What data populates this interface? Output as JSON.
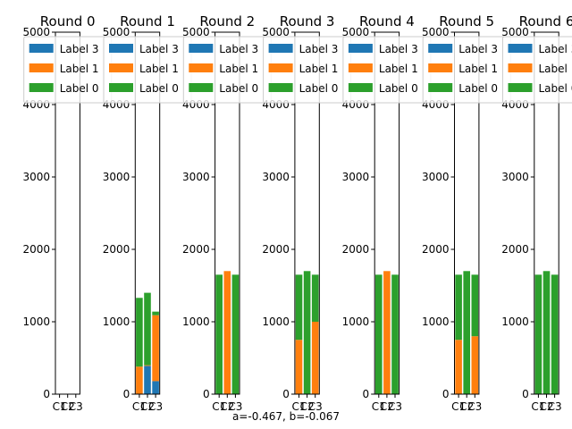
{
  "figure": {
    "caption": "a=-0.467, b=-0.067",
    "colors": {
      "Label 3": "#1f77b4",
      "Label 1": "#ff7f0e",
      "Label 0": "#2ca02c"
    }
  },
  "chart_data": [
    {
      "type": "bar",
      "stacked": true,
      "title": "Round 0",
      "categories": [
        "C1",
        "C2",
        "C3"
      ],
      "ylim": [
        0,
        5000
      ],
      "yticks": [
        0,
        1000,
        2000,
        3000,
        4000,
        5000
      ],
      "legend": [
        "Label 3",
        "Label 1",
        "Label 0"
      ],
      "legend_position": "top",
      "series": [
        {
          "name": "Label 3",
          "values": [
            0,
            0,
            0
          ]
        },
        {
          "name": "Label 1",
          "values": [
            0,
            0,
            0
          ]
        },
        {
          "name": "Label 0",
          "values": [
            0,
            0,
            0
          ]
        }
      ]
    },
    {
      "type": "bar",
      "stacked": true,
      "title": "Round 1",
      "categories": [
        "C1",
        "C2",
        "C3"
      ],
      "ylim": [
        0,
        5000
      ],
      "yticks": [
        0,
        1000,
        2000,
        3000,
        4000,
        5000
      ],
      "legend": [
        "Label 3",
        "Label 1",
        "Label 0"
      ],
      "legend_position": "top",
      "series": [
        {
          "name": "Label 3",
          "values": [
            0,
            390,
            180
          ]
        },
        {
          "name": "Label 1",
          "values": [
            380,
            10,
            910
          ]
        },
        {
          "name": "Label 0",
          "values": [
            950,
            1000,
            50
          ]
        }
      ]
    },
    {
      "type": "bar",
      "stacked": true,
      "title": "Round 2",
      "categories": [
        "C1",
        "C2",
        "C3"
      ],
      "ylim": [
        0,
        5000
      ],
      "yticks": [
        0,
        1000,
        2000,
        3000,
        4000,
        5000
      ],
      "legend": [
        "Label 3",
        "Label 1",
        "Label 0"
      ],
      "legend_position": "top",
      "series": [
        {
          "name": "Label 3",
          "values": [
            0,
            0,
            0
          ]
        },
        {
          "name": "Label 1",
          "values": [
            0,
            1700,
            0
          ]
        },
        {
          "name": "Label 0",
          "values": [
            1650,
            0,
            1650
          ]
        }
      ]
    },
    {
      "type": "bar",
      "stacked": true,
      "title": "Round 3",
      "categories": [
        "C1",
        "C2",
        "C3"
      ],
      "ylim": [
        0,
        5000
      ],
      "yticks": [
        0,
        1000,
        2000,
        3000,
        4000,
        5000
      ],
      "legend": [
        "Label 3",
        "Label 1",
        "Label 0"
      ],
      "legend_position": "top",
      "series": [
        {
          "name": "Label 3",
          "values": [
            0,
            0,
            0
          ]
        },
        {
          "name": "Label 1",
          "values": [
            750,
            0,
            1000
          ]
        },
        {
          "name": "Label 0",
          "values": [
            900,
            1700,
            650
          ]
        }
      ]
    },
    {
      "type": "bar",
      "stacked": true,
      "title": "Round 4",
      "categories": [
        "C1",
        "C2",
        "C3"
      ],
      "ylim": [
        0,
        5000
      ],
      "yticks": [
        0,
        1000,
        2000,
        3000,
        4000,
        5000
      ],
      "legend": [
        "Label 3",
        "Label 1",
        "Label 0"
      ],
      "legend_position": "top",
      "series": [
        {
          "name": "Label 3",
          "values": [
            0,
            0,
            0
          ]
        },
        {
          "name": "Label 1",
          "values": [
            0,
            1700,
            0
          ]
        },
        {
          "name": "Label 0",
          "values": [
            1650,
            0,
            1650
          ]
        }
      ]
    },
    {
      "type": "bar",
      "stacked": true,
      "title": "Round 5",
      "categories": [
        "C1",
        "C2",
        "C3"
      ],
      "ylim": [
        0,
        5000
      ],
      "yticks": [
        0,
        1000,
        2000,
        3000,
        4000,
        5000
      ],
      "legend": [
        "Label 3",
        "Label 1",
        "Label 0"
      ],
      "legend_position": "top",
      "series": [
        {
          "name": "Label 3",
          "values": [
            0,
            0,
            0
          ]
        },
        {
          "name": "Label 1",
          "values": [
            750,
            0,
            800
          ]
        },
        {
          "name": "Label 0",
          "values": [
            900,
            1700,
            850
          ]
        }
      ]
    },
    {
      "type": "bar",
      "stacked": true,
      "title": "Round 6",
      "categories": [
        "C1",
        "C2",
        "C3"
      ],
      "ylim": [
        0,
        5000
      ],
      "yticks": [
        0,
        1000,
        2000,
        3000,
        4000,
        5000
      ],
      "legend": [
        "Label 3",
        "Label 1",
        "Label 0"
      ],
      "legend_position": "top",
      "series": [
        {
          "name": "Label 3",
          "values": [
            0,
            0,
            0
          ]
        },
        {
          "name": "Label 1",
          "values": [
            0,
            0,
            0
          ]
        },
        {
          "name": "Label 0",
          "values": [
            1650,
            1700,
            1650
          ]
        }
      ]
    }
  ]
}
